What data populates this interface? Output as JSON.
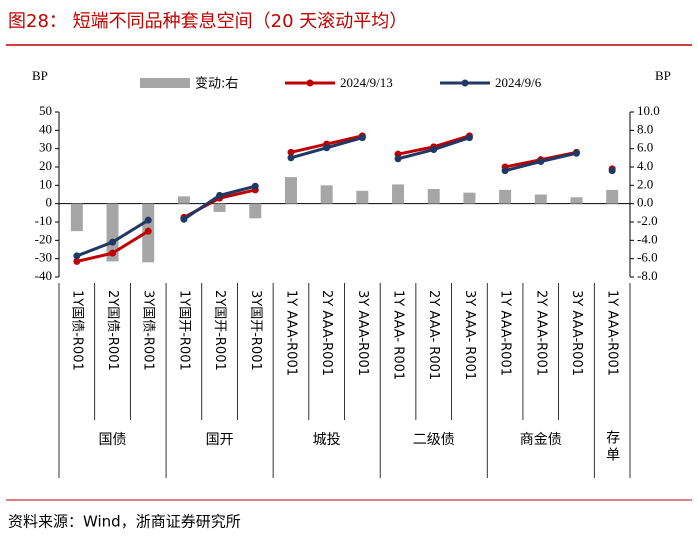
{
  "title": "图28：  短端不同品种套息空间（20 天滚动平均）",
  "source": "资料来源：Wind，浙商证券研究所",
  "chart_data": {
    "type": "bar-line",
    "y_label": "BP",
    "y2_label": "BP",
    "groups": [
      {
        "label": "国债",
        "categories": [
          "1Y国债-R001",
          "2Y国债-R001",
          "3Y国债-R001"
        ]
      },
      {
        "label": "国开",
        "categories": [
          "1Y国开-R001",
          "2Y国开-R001",
          "3Y国开-R001"
        ]
      },
      {
        "label": "城投",
        "categories": [
          "1Y AAA-R001",
          "2Y AAA-R001",
          "3Y AAA-R001"
        ]
      },
      {
        "label": "二级债",
        "categories": [
          "1Y AAA- R001",
          "2Y AAA- R001",
          "3Y AAA- R001"
        ]
      },
      {
        "label": "商金债",
        "categories": [
          "1Y AAA-R001",
          "2Y AAA-R001",
          "3Y AAA-R001"
        ]
      },
      {
        "label": "存单",
        "categories": [
          "1Y AAA-R001"
        ]
      }
    ],
    "series": [
      {
        "name": "变动:右",
        "type": "bar",
        "axis": "y2",
        "color": "#a6a6a6",
        "values": [
          -3.0,
          -6.3,
          -6.4,
          0.8,
          -0.9,
          -1.6,
          2.9,
          2.0,
          1.4,
          2.1,
          1.6,
          1.2,
          1.5,
          1.0,
          0.7,
          1.5
        ]
      },
      {
        "name": "2024/9/13",
        "type": "line",
        "color": "#c00000",
        "values": [
          -31.5,
          -27,
          -15,
          -7.5,
          3,
          7.5,
          28,
          32.5,
          37,
          27,
          31,
          37,
          20,
          24,
          28,
          19
        ]
      },
      {
        "name": "2024/9/6",
        "type": "line",
        "color": "#203864",
        "values": [
          -28.5,
          -21,
          -9,
          -8.5,
          4.5,
          9.5,
          25,
          30.5,
          36,
          24.5,
          29.5,
          36,
          18,
          23,
          27.5,
          18
        ]
      }
    ],
    "ylim": [
      -40,
      50
    ],
    "yticks": [
      50,
      40,
      30,
      20,
      10,
      0,
      -10,
      -20,
      -30,
      -40
    ],
    "y2lim": [
      -8,
      10
    ],
    "y2ticks": [
      {
        "value": 10,
        "label": "10.0"
      },
      {
        "value": 8,
        "label": "8.0"
      },
      {
        "value": 6,
        "label": "6.0"
      },
      {
        "value": 4,
        "label": "4.0"
      },
      {
        "value": 2,
        "label": "2.0"
      },
      {
        "value": 0,
        "label": "0.0"
      },
      {
        "value": -2,
        "label": "-2.0"
      },
      {
        "value": -4,
        "label": "-4.0"
      },
      {
        "value": -6,
        "label": "-6.0"
      },
      {
        "value": -8,
        "label": "-8.0"
      }
    ]
  }
}
